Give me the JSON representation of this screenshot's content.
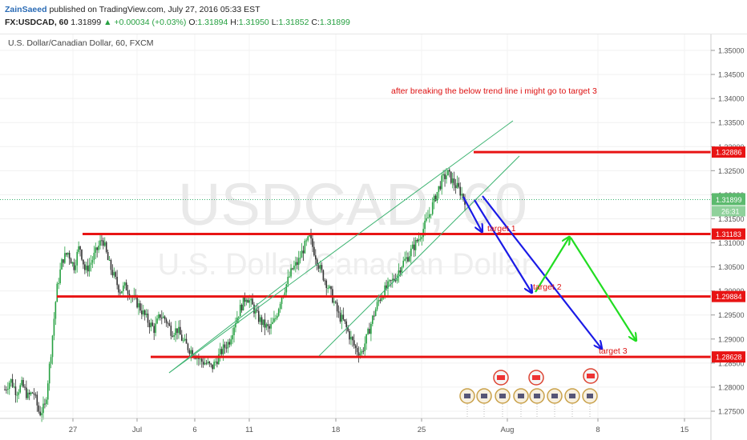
{
  "header": {
    "author": "ZainSaeed",
    "published": "published on TradingView.com, July 27, 2016 05:33 EST",
    "symbol": "FX:USDCAD, 60",
    "last": "1.31899",
    "change": "▲ +0.00034 (+0.03%)",
    "o_label": "O:",
    "o": "1.31894",
    "h_label": "H:",
    "h": "1.31950",
    "l_label": "L:",
    "l": "1.31852",
    "c_label": "C:",
    "c": "1.31899"
  },
  "colors": {
    "level": "#e81414",
    "blue_arrow": "#1a1ae6",
    "green_arrow": "#22dd22",
    "channel": "#3cb371",
    "up_candle": "#26a041",
    "down_candle": "#333333",
    "annotation": "#dd1111"
  },
  "chart_data": {
    "type": "candlestick",
    "title": "U.S. Dollar/Canadian Dollar, 60, FXCM",
    "watermark_symbol": "USDCAD, 60",
    "watermark_name": "U.S. Dollar/Canadian Dollar",
    "x_ticks": [
      "27",
      "Jul",
      "6",
      "11",
      "18",
      "25",
      "Aug",
      "8",
      "15"
    ],
    "y_ticks": [
      1.35,
      1.345,
      1.34,
      1.335,
      1.33,
      1.325,
      1.32,
      1.315,
      1.31,
      1.305,
      1.3,
      1.295,
      1.29,
      1.285,
      1.28,
      1.275
    ],
    "y_tick_labels": [
      "1.35000",
      "1.34500",
      "1.34000",
      "1.33500",
      "1.33000",
      "1.32500",
      "1.32000",
      "1.31500",
      "1.31000",
      "1.30500",
      "1.30000",
      "1.29500",
      "1.29000",
      "1.28500",
      "1.28000",
      "1.27500"
    ],
    "ylim": [
      1.2728,
      1.3523
    ],
    "current_price": "1.31899",
    "countdown": "26:31",
    "levels": [
      {
        "label": "1.32886",
        "value": 1.32886
      },
      {
        "label": "1.31183",
        "value": 1.31183
      },
      {
        "label": "1.29884",
        "value": 1.29884
      },
      {
        "label": "1.28628",
        "value": 1.28628
      }
    ],
    "annotations": {
      "note": "after breaking the below trend line i might go to target 3",
      "target1": "target 1",
      "target2": "target 2",
      "target3": "target 3"
    },
    "price_path": [
      [
        1.2795,
        1.2815,
        1.279,
        1.2805,
        1.278,
        1.279,
        1.2745,
        1.276,
        1.287,
        1.3,
        1.3065,
        1.308,
        1.305,
        1.3095,
        1.304,
        1.306,
        1.3085,
        1.311,
        1.306,
        1.303,
        1.3,
        1.301,
        1.299,
        1.2975,
        1.2955,
        1.2935,
        1.292,
        1.295,
        1.294,
        1.2915,
        1.292,
        1.2895,
        1.288,
        1.287,
        1.2855,
        1.285,
        1.284,
        1.286,
        1.288,
        1.2895,
        1.2935,
        1.2965,
        1.299,
        1.297,
        1.2945,
        1.293,
        1.292,
        1.294,
        1.2985,
        1.3015,
        1.3045,
        1.306,
        1.309,
        1.311,
        1.3075,
        1.304,
        1.3015,
        1.2985,
        1.295,
        1.2935,
        1.2905,
        1.288,
        1.287,
        1.2905,
        1.2945,
        1.298,
        1.3,
        1.3015,
        1.303,
        1.3055,
        1.307,
        1.309,
        1.311,
        1.3135,
        1.3165,
        1.32,
        1.323,
        1.3245,
        1.3225,
        1.321,
        1.319
      ]
    ]
  }
}
